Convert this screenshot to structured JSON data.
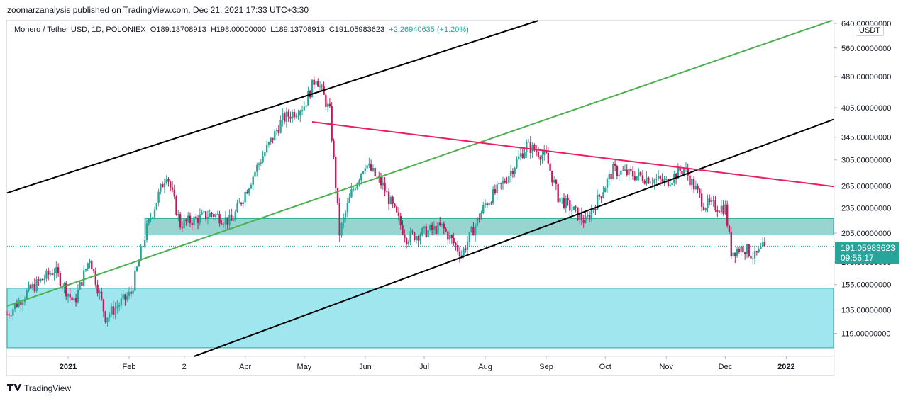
{
  "publisher": "zoomarzanalysis published on TradingView.com, Dec 21, 2021 17:33 UTC+3:30",
  "legend": {
    "symbol": "Monero / Tether USD, 1D, POLONIEX",
    "open": "O189.13708913",
    "high": "H198.00000000",
    "low": "L189.13708913",
    "close": "C191.05983623",
    "change": "+2.26940635 (+1.20%)"
  },
  "footer": {
    "brand": "TradingView",
    "logo": "tradingview-logo"
  },
  "price_tag": {
    "price": "191.05983623",
    "countdown": "09:56:17"
  },
  "colors": {
    "bull": "#26a69a",
    "bear": "#ef5350",
    "up": "#26a69a",
    "down": "#c2185b",
    "channel": "#000000",
    "green_line": "#4caf50",
    "resistance": "#e91e63",
    "zone_mid": "#80cbc4",
    "zone_low": "#80deea"
  },
  "chart_data": {
    "type": "candlestick",
    "title": "Monero / Tether USD, 1D, POLONIEX",
    "unit": "USDT",
    "y_scale": "log",
    "ylim": [
      105,
      650
    ],
    "y_ticks": [
      {
        "value": 640,
        "label": "640.00000000"
      },
      {
        "value": 560,
        "label": "560.00000000"
      },
      {
        "value": 480,
        "label": "480.00000000"
      },
      {
        "value": 405,
        "label": "405.00000000"
      },
      {
        "value": 345,
        "label": "345.00000000"
      },
      {
        "value": 305,
        "label": "305.00000000"
      },
      {
        "value": 265,
        "label": "265.00000000"
      },
      {
        "value": 235,
        "label": "235.00000000"
      },
      {
        "value": 205,
        "label": "205.00000000"
      },
      {
        "value": 175,
        "label": "175.00000000"
      },
      {
        "value": 155,
        "label": "155.00000000"
      },
      {
        "value": 135,
        "label": "135.00000000"
      },
      {
        "value": 119,
        "label": "119.00000000"
      }
    ],
    "x_ticks": [
      {
        "date": "2021-01-01",
        "label": "2021"
      },
      {
        "date": "2021-02-01",
        "label": "Feb"
      },
      {
        "date": "2021-03-01",
        "label": "2"
      },
      {
        "date": "2021-04-01",
        "label": "Apr"
      },
      {
        "date": "2021-05-01",
        "label": "May"
      },
      {
        "date": "2021-06-01",
        "label": "Jun"
      },
      {
        "date": "2021-07-01",
        "label": "Jul"
      },
      {
        "date": "2021-08-01",
        "label": "Aug"
      },
      {
        "date": "2021-09-01",
        "label": "Sep"
      },
      {
        "date": "2021-10-01",
        "label": "Oct"
      },
      {
        "date": "2021-11-01",
        "label": "Nov"
      },
      {
        "date": "2021-12-01",
        "label": "Dec"
      },
      {
        "date": "2022-01-01",
        "label": "2022"
      }
    ],
    "xlim": [
      "2020-12-01",
      "2022-01-25"
    ],
    "last_price": 191.05983623,
    "price_path": [
      {
        "date": "2020-12-01",
        "price": 132
      },
      {
        "date": "2020-12-12",
        "price": 150
      },
      {
        "date": "2020-12-25",
        "price": 168
      },
      {
        "date": "2021-01-04",
        "price": 140
      },
      {
        "date": "2021-01-12",
        "price": 180
      },
      {
        "date": "2021-01-20",
        "price": 130
      },
      {
        "date": "2021-02-02",
        "price": 148
      },
      {
        "date": "2021-02-10",
        "price": 210
      },
      {
        "date": "2021-02-20",
        "price": 285
      },
      {
        "date": "2021-02-27",
        "price": 215
      },
      {
        "date": "2021-03-15",
        "price": 228
      },
      {
        "date": "2021-03-25",
        "price": 218
      },
      {
        "date": "2021-04-08",
        "price": 300
      },
      {
        "date": "2021-04-20",
        "price": 380
      },
      {
        "date": "2021-05-01",
        "price": 410
      },
      {
        "date": "2021-05-07",
        "price": 480
      },
      {
        "date": "2021-05-14",
        "price": 395
      },
      {
        "date": "2021-05-19",
        "price": 205
      },
      {
        "date": "2021-05-25",
        "price": 255
      },
      {
        "date": "2021-06-01",
        "price": 300
      },
      {
        "date": "2021-06-10",
        "price": 265
      },
      {
        "date": "2021-06-22",
        "price": 200
      },
      {
        "date": "2021-07-10",
        "price": 212
      },
      {
        "date": "2021-07-20",
        "price": 183
      },
      {
        "date": "2021-08-01",
        "price": 240
      },
      {
        "date": "2021-08-10",
        "price": 268
      },
      {
        "date": "2021-08-22",
        "price": 330
      },
      {
        "date": "2021-09-01",
        "price": 310
      },
      {
        "date": "2021-09-07",
        "price": 250
      },
      {
        "date": "2021-09-21",
        "price": 218
      },
      {
        "date": "2021-10-05",
        "price": 288
      },
      {
        "date": "2021-10-20",
        "price": 278
      },
      {
        "date": "2021-11-01",
        "price": 270
      },
      {
        "date": "2021-11-10",
        "price": 292
      },
      {
        "date": "2021-11-20",
        "price": 240
      },
      {
        "date": "2021-12-01",
        "price": 235
      },
      {
        "date": "2021-12-04",
        "price": 185
      },
      {
        "date": "2021-12-10",
        "price": 190
      },
      {
        "date": "2021-12-16",
        "price": 180
      },
      {
        "date": "2021-12-21",
        "price": 191
      }
    ],
    "drawings": {
      "channel_upper": {
        "from": {
          "date": "2020-12-01",
          "price": 255
        },
        "to": {
          "date": "2021-08-28",
          "price": 650
        },
        "color": "#000000"
      },
      "channel_lower": {
        "from": {
          "date": "2021-02-14",
          "price": 97
        },
        "to": {
          "date": "2022-01-25",
          "price": 380
        },
        "color": "#000000"
      },
      "green_trend": {
        "from": {
          "date": "2020-12-01",
          "price": 138
        },
        "to": {
          "date": "2022-01-25",
          "price": 652
        },
        "color": "#4caf50"
      },
      "resistance_line": {
        "from": {
          "date": "2021-05-05",
          "price": 375
        },
        "to": {
          "date": "2022-01-25",
          "price": 264
        },
        "color": "#e91e63"
      },
      "zone_mid": {
        "from_date": "2021-02-09",
        "to_date": "2022-01-25",
        "low": 203,
        "high": 222,
        "color": "#80cbc4"
      },
      "zone_low": {
        "from_date": "2020-12-01",
        "to_date": "2022-01-25",
        "low": 110,
        "high": 152,
        "color": "#80deea"
      }
    }
  }
}
